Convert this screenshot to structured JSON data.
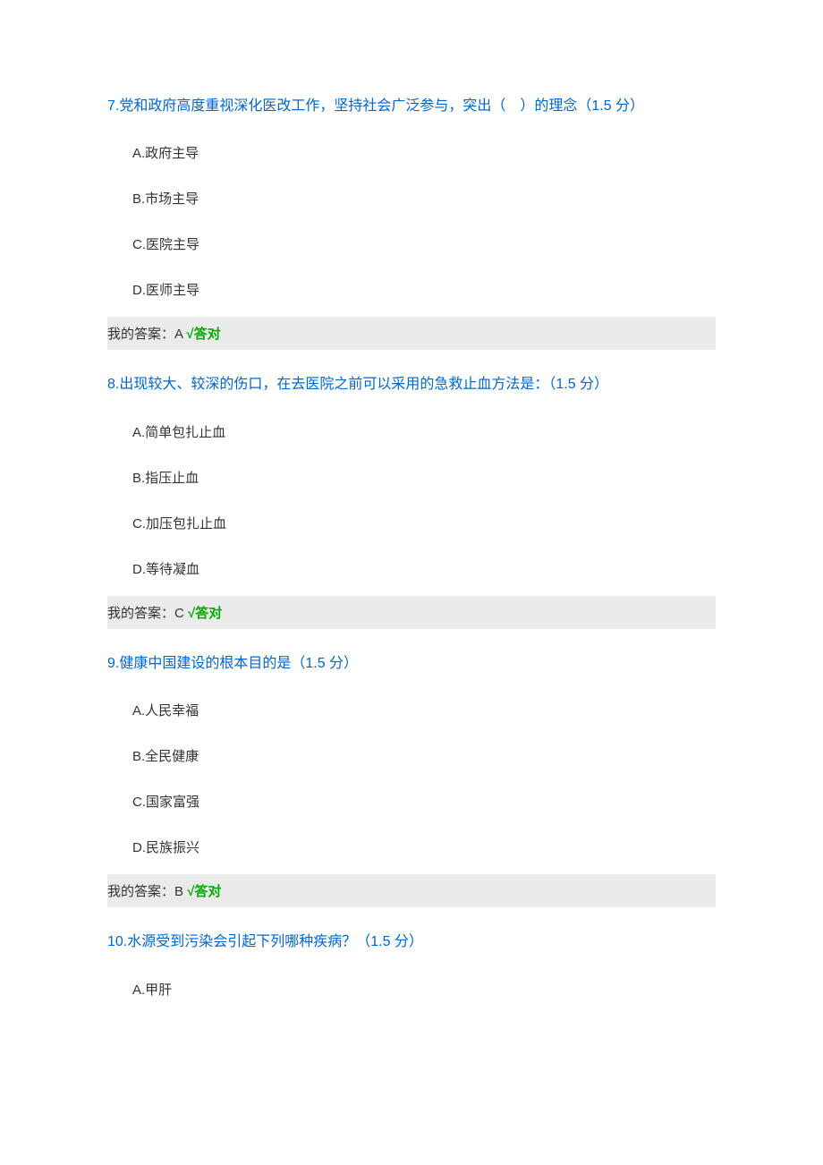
{
  "questions": [
    {
      "number": "7",
      "text": "党和政府高度重视深化医改工作，坚持社会广泛参与，突出（　）的理念（1.5 分）",
      "options": [
        "A.政府主导",
        "B.市场主导",
        "C.医院主导",
        "D.医师主导"
      ],
      "answer_label": "我的答案：A ",
      "answer_result": "√答对"
    },
    {
      "number": "8",
      "text": "出现较大、较深的伤口，在去医院之前可以采用的急救止血方法是：（1.5 分）",
      "options": [
        "A.简单包扎止血",
        "B.指压止血",
        "C.加压包扎止血",
        "D.等待凝血"
      ],
      "answer_label": "我的答案：C ",
      "answer_result": "√答对"
    },
    {
      "number": "9",
      "text": "健康中国建设的根本目的是（1.5 分）",
      "options": [
        "A.人民幸福",
        "B.全民健康",
        "C.国家富强",
        "D.民族振兴"
      ],
      "answer_label": "我的答案：B ",
      "answer_result": "√答对"
    },
    {
      "number": "10",
      "text": "水源受到污染会引起下列哪种疾病？（1.5 分）",
      "options": [
        "A.甲肝"
      ],
      "answer_label": null,
      "answer_result": null
    }
  ],
  "colors": {
    "question_title": "#0066cc",
    "option_text": "#333333",
    "answer_bg": "#ebebeb",
    "correct": "#00aa00",
    "background": "#ffffff"
  }
}
